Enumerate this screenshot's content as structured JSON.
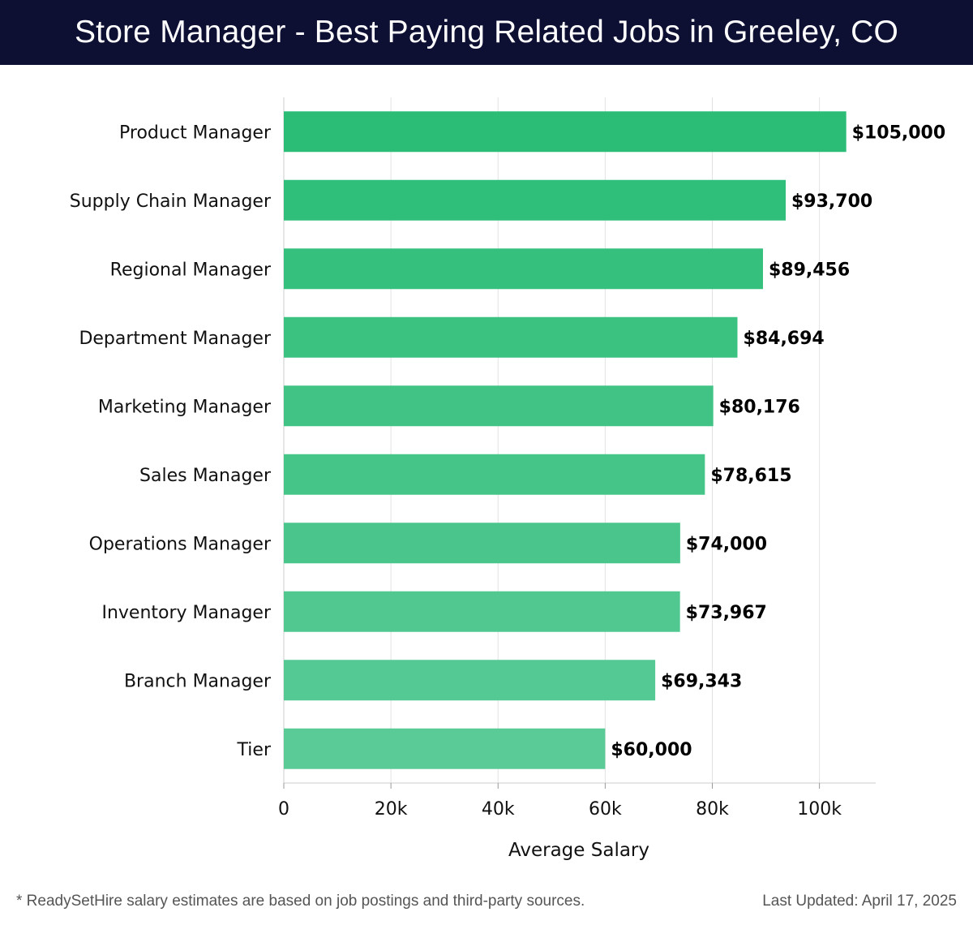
{
  "header": {
    "title": "Store Manager - Best Paying Related Jobs in Greeley, CO"
  },
  "chart_data": {
    "type": "bar",
    "orientation": "horizontal",
    "categories": [
      "Product Manager",
      "Supply Chain Manager",
      "Regional Manager",
      "Department Manager",
      "Marketing Manager",
      "Sales Manager",
      "Operations Manager",
      "Inventory Manager",
      "Branch Manager",
      "Tier"
    ],
    "values": [
      105000,
      93700,
      89456,
      84694,
      80176,
      78615,
      74000,
      73967,
      69343,
      60000
    ],
    "value_labels": [
      "$105,000",
      "$93,700",
      "$89,456",
      "$84,694",
      "$80,176",
      "$78,615",
      "$74,000",
      "$73,967",
      "$69,343",
      "$60,000"
    ],
    "xlabel": "Average Salary",
    "xlim": [
      0,
      110500
    ],
    "x_ticks": [
      0,
      20000,
      40000,
      60000,
      80000,
      100000
    ],
    "x_tick_labels": [
      "0",
      "20k",
      "40k",
      "60k",
      "80k",
      "100k"
    ],
    "grid": true,
    "colors": {
      "bar_top": "#2bbd76",
      "bar_bottom": "#5acb97",
      "gridline": "#e3e3e3",
      "axis": "#cccccc"
    }
  },
  "footer": {
    "note": "* ReadySetHire salary estimates are based on job postings and third-party sources.",
    "updated": "Last Updated: April 17, 2025"
  }
}
